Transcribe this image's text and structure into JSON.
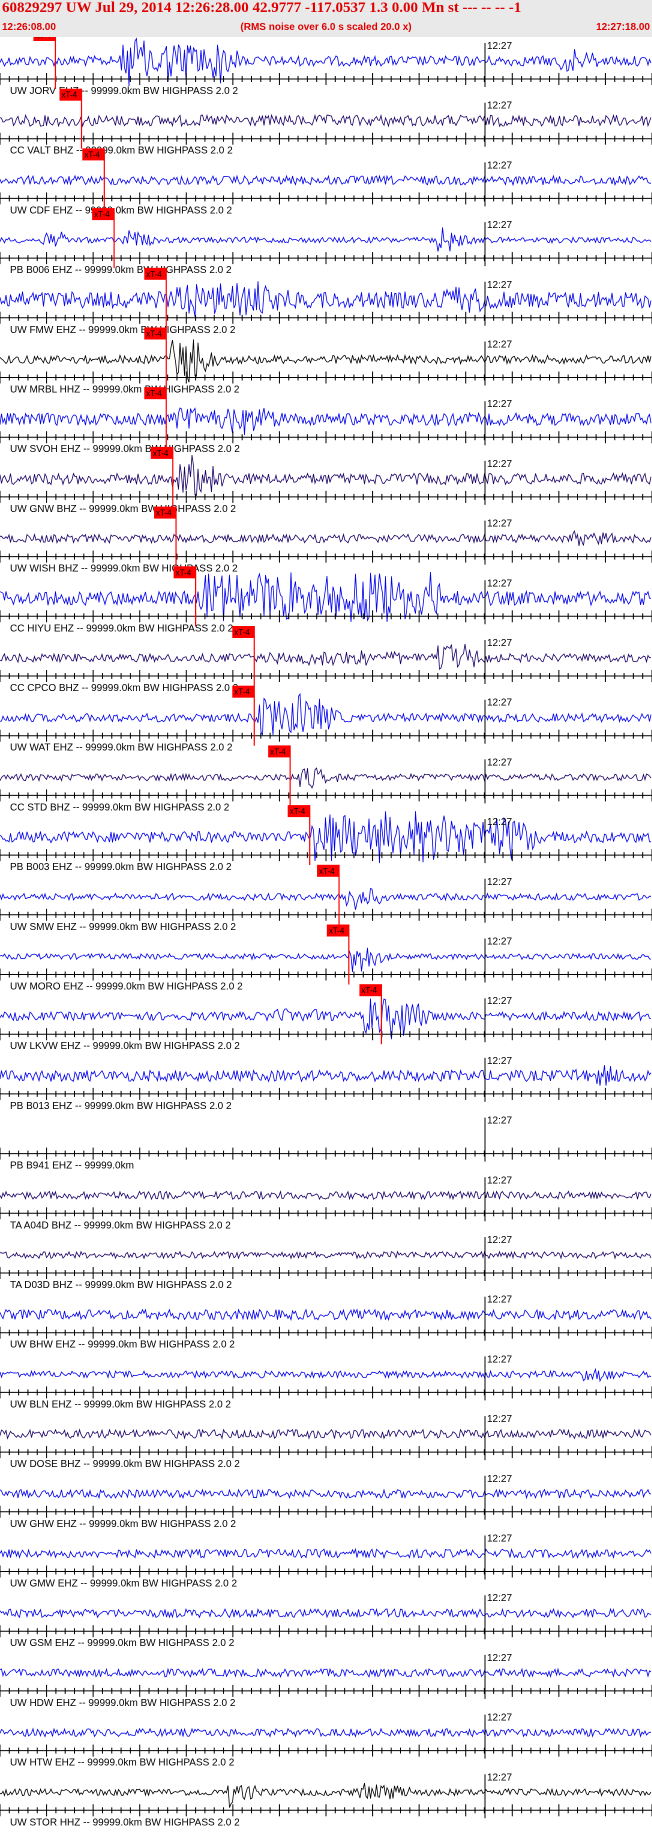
{
  "header": {
    "title": "60829297 UW Jul 29, 2014 12:26:28.00   42.9777 -117.0537  1.3 0.00 Mn st --- -- --   -1",
    "start_time": "12:26:08.00",
    "note": "(RMS noise over 6.0 s scaled 20.0 x)",
    "end_time": "12:27:18.00"
  },
  "chart_data": {
    "type": "line",
    "title": "60829297 UW Jul 29, 2014 12:26:28.00",
    "x_range": [
      "12:26:08.00",
      "12:27:18.00"
    ],
    "minute_label": "12:27",
    "pick_label": "xT-4",
    "colors": {
      "blue": "#0000ee",
      "dark": "#1a0066",
      "black": "#000000",
      "pick": "#ff0000"
    },
    "traces": [
      {
        "label": "UW JORV EHZ -- 99999.0km BW  HIGHPASS  2.0  2",
        "color": "blue",
        "pick": 0.085,
        "noise": 0.18,
        "events": [
          [
            0.18,
            0.33,
            1.0
          ],
          [
            0.85,
            0.88,
            0.7
          ]
        ]
      },
      {
        "label": "CC VALT BHZ -- 99999.0km BW  HIGHPASS  2.0  2",
        "color": "dark",
        "pick": 0.125,
        "noise": 0.2,
        "events": []
      },
      {
        "label": "UW CDF EHZ -- 99999.0km BW  HIGHPASS  2.0  2",
        "color": "blue",
        "pick": 0.16,
        "noise": 0.16,
        "events": []
      },
      {
        "label": "PB B006 EHZ -- 99999.0km BW  HIGHPASS  2.0  2",
        "color": "blue",
        "pick": 0.175,
        "noise": 0.1,
        "events": [
          [
            0.06,
            0.07,
            0.5
          ],
          [
            0.18,
            0.2,
            0.4
          ],
          [
            0.66,
            0.69,
            0.5
          ]
        ]
      },
      {
        "label": "UW FMW EHZ -- 99999.0km BW  HIGHPASS  2.0  2",
        "color": "blue",
        "pick": 0.255,
        "noise": 0.3,
        "events": [
          [
            0.26,
            0.42,
            0.7
          ],
          [
            0.66,
            0.72,
            0.6
          ]
        ]
      },
      {
        "label": "UW MRBL HHZ -- 99999.0km BW  HIGHPASS  2.0  2",
        "color": "black",
        "pick": 0.255,
        "noise": 0.15,
        "events": [
          [
            0.25,
            0.29,
            0.9
          ]
        ]
      },
      {
        "label": "UW SVOH EHZ -- 99999.0km BW  HIGHPASS  2.0  2",
        "color": "blue",
        "pick": 0.255,
        "noise": 0.22,
        "events": [
          [
            0.26,
            0.4,
            0.6
          ]
        ]
      },
      {
        "label": "UW GNW BHZ -- 99999.0km BW  HIGHPASS  2.0  2",
        "color": "dark",
        "pick": 0.265,
        "noise": 0.2,
        "events": [
          [
            0.26,
            0.3,
            0.95
          ]
        ]
      },
      {
        "label": "UW WISH BHZ -- 99999.0km BW  HIGHPASS  2.0  2",
        "color": "dark",
        "pick": 0.27,
        "noise": 0.15,
        "events": [
          [
            0.87,
            0.92,
            0.35
          ]
        ]
      },
      {
        "label": "CC HIYU EHZ -- 99999.0km BW  HIGHPASS  2.0  2",
        "color": "blue",
        "pick": 0.3,
        "noise": 0.25,
        "events": [
          [
            0.3,
            0.66,
            1.0
          ]
        ]
      },
      {
        "label": "CC CPCO BHZ -- 99999.0km BW  HIGHPASS  2.0  2",
        "color": "dark",
        "pick": 0.39,
        "noise": 0.15,
        "events": [
          [
            0.4,
            0.6,
            0.3
          ],
          [
            0.66,
            0.71,
            0.6
          ]
        ]
      },
      {
        "label": "UW WAT EHZ -- 99999.0km BW  HIGHPASS  2.0  2",
        "color": "blue",
        "pick": 0.39,
        "noise": 0.15,
        "events": [
          [
            0.39,
            0.48,
            0.95
          ]
        ]
      },
      {
        "label": "CC STD BHZ -- 99999.0km BW  HIGHPASS  2.0  2",
        "color": "dark",
        "pick": 0.445,
        "noise": 0.12,
        "events": [
          [
            0.45,
            0.48,
            0.45
          ]
        ]
      },
      {
        "label": "PB B003 EHZ -- 99999.0km BW  HIGHPASS  2.0  2",
        "color": "blue",
        "pick": 0.475,
        "noise": 0.2,
        "events": [
          [
            0.47,
            0.79,
            1.0
          ]
        ]
      },
      {
        "label": "UW SMW EHZ -- 99999.0km BW  HIGHPASS  2.0  2",
        "color": "blue",
        "pick": 0.52,
        "noise": 0.12,
        "events": [
          [
            0.52,
            0.55,
            0.6
          ]
        ]
      },
      {
        "label": "UW MORO EHZ -- 99999.0km BW  HIGHPASS  2.0  2",
        "color": "blue",
        "pick": 0.535,
        "noise": 0.1,
        "events": [
          [
            0.53,
            0.55,
            0.8
          ]
        ]
      },
      {
        "label": "UW LKVW EHZ -- 99999.0km BW  HIGHPASS  2.0  2",
        "color": "blue",
        "pick": 0.585,
        "noise": 0.15,
        "events": [
          [
            0.4,
            0.48,
            0.3
          ],
          [
            0.55,
            0.62,
            0.9
          ]
        ]
      },
      {
        "label": "PB B013 EHZ -- 99999.0km BW  HIGHPASS  2.0  2",
        "color": "blue",
        "pick": null,
        "noise": 0.2,
        "events": [
          [
            0.86,
            0.96,
            0.4
          ]
        ]
      },
      {
        "label": "PB B941 EHZ -- 99999.0km",
        "color": "blue",
        "pick": null,
        "noise": 0.0,
        "events": []
      },
      {
        "label": "TA A04D BHZ -- 99999.0km BW  HIGHPASS  2.0  2",
        "color": "dark",
        "pick": null,
        "noise": 0.14,
        "events": []
      },
      {
        "label": "TA D03D BHZ -- 99999.0km BW  HIGHPASS  2.0  2",
        "color": "dark",
        "pick": null,
        "noise": 0.12,
        "events": []
      },
      {
        "label": "UW BHW EHZ -- 99999.0km BW  HIGHPASS  2.0  2",
        "color": "blue",
        "pick": null,
        "noise": 0.18,
        "events": []
      },
      {
        "label": "UW BLN EHZ -- 99999.0km BW  HIGHPASS  2.0  2",
        "color": "blue",
        "pick": null,
        "noise": 0.12,
        "events": [
          [
            0.88,
            0.93,
            0.3
          ]
        ]
      },
      {
        "label": "UW DOSE BHZ -- 99999.0km BW  HIGHPASS  2.0  2",
        "color": "dark",
        "pick": null,
        "noise": 0.16,
        "events": []
      },
      {
        "label": "UW GHW EHZ -- 99999.0km BW  HIGHPASS  2.0  2",
        "color": "blue",
        "pick": null,
        "noise": 0.15,
        "events": []
      },
      {
        "label": "UW GMW EHZ -- 99999.0km BW  HIGHPASS  2.0  2",
        "color": "blue",
        "pick": null,
        "noise": 0.15,
        "events": []
      },
      {
        "label": "UW GSM EHZ -- 99999.0km BW  HIGHPASS  2.0  2",
        "color": "blue",
        "pick": null,
        "noise": 0.15,
        "events": []
      },
      {
        "label": "UW HDW EHZ -- 99999.0km BW  HIGHPASS  2.0  2",
        "color": "blue",
        "pick": null,
        "noise": 0.14,
        "events": []
      },
      {
        "label": "UW HTW EHZ -- 99999.0km BW  HIGHPASS  2.0  2",
        "color": "blue",
        "pick": null,
        "noise": 0.14,
        "events": []
      },
      {
        "label": "UW STOR HHZ -- 99999.0km BW  HIGHPASS  2.0  2",
        "color": "black",
        "pick": null,
        "noise": 0.12,
        "events": [
          [
            0.34,
            0.36,
            0.6
          ],
          [
            0.54,
            0.6,
            0.35
          ]
        ]
      }
    ]
  }
}
